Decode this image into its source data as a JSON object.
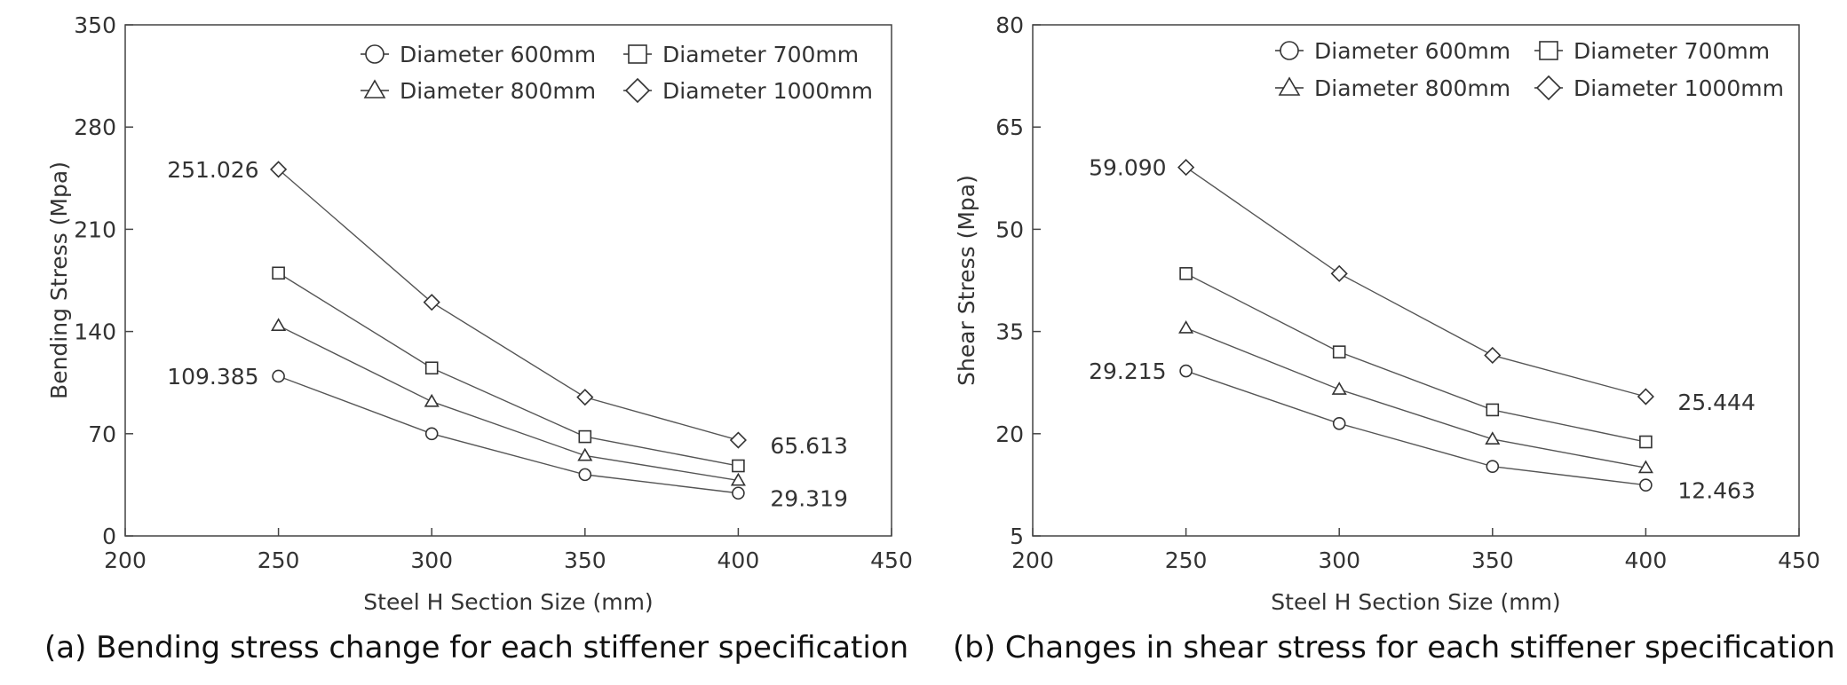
{
  "chart_data": [
    {
      "type": "line",
      "ylabel": "Bending Stress (Mpa)",
      "xlabel": "Steel H Section Size (mm)",
      "xlim": [
        200,
        450
      ],
      "ylim": [
        0,
        350
      ],
      "xticks": [
        200,
        250,
        300,
        350,
        400,
        450
      ],
      "yticks": [
        0,
        70,
        140,
        210,
        280,
        350
      ],
      "x": [
        250,
        300,
        350,
        400
      ],
      "series": [
        {
          "name": "Diameter 600mm",
          "marker": "circle",
          "values": [
            109.385,
            70,
            42,
            29.319
          ]
        },
        {
          "name": "Diameter 700mm",
          "marker": "square",
          "values": [
            180,
            115,
            68,
            48
          ]
        },
        {
          "name": "Diameter 800mm",
          "marker": "triangle",
          "values": [
            144,
            92,
            55,
            38
          ]
        },
        {
          "name": "Diameter 1000mm",
          "marker": "diamond",
          "values": [
            251.026,
            160,
            95,
            65.613
          ]
        }
      ],
      "annotations": [
        {
          "text": "251.026",
          "x": 250,
          "y": 251.026,
          "side": "left"
        },
        {
          "text": "109.385",
          "x": 250,
          "y": 109.385,
          "side": "left"
        },
        {
          "text": "65.613",
          "x": 400,
          "y": 65.613,
          "side": "right"
        },
        {
          "text": "29.319",
          "x": 400,
          "y": 29.319,
          "side": "right"
        }
      ],
      "legend": "top-right",
      "grid": false,
      "caption": "(a) Bending stress change for each stiffener specification"
    },
    {
      "type": "line",
      "ylabel": "Shear Stress (Mpa)",
      "xlabel": "Steel H Section Size (mm)",
      "xlim": [
        200,
        450
      ],
      "ylim": [
        5,
        80
      ],
      "xticks": [
        200,
        250,
        300,
        350,
        400,
        450
      ],
      "yticks": [
        5,
        20,
        35,
        50,
        65,
        80
      ],
      "x": [
        250,
        300,
        350,
        400
      ],
      "series": [
        {
          "name": "Diameter 600mm",
          "marker": "circle",
          "values": [
            29.215,
            21.5,
            15.2,
            12.463
          ]
        },
        {
          "name": "Diameter 700mm",
          "marker": "square",
          "values": [
            43.5,
            32,
            23.5,
            18.8
          ]
        },
        {
          "name": "Diameter 800mm",
          "marker": "triangle",
          "values": [
            35.5,
            26.5,
            19.2,
            15
          ]
        },
        {
          "name": "Diameter 1000mm",
          "marker": "diamond",
          "values": [
            59.09,
            43.5,
            31.5,
            25.444
          ]
        }
      ],
      "annotations": [
        {
          "text": "59.090",
          "x": 250,
          "y": 59.09,
          "side": "left"
        },
        {
          "text": "29.215",
          "x": 250,
          "y": 29.215,
          "side": "left"
        },
        {
          "text": "25.444",
          "x": 400,
          "y": 25.444,
          "side": "right"
        },
        {
          "text": "12.463",
          "x": 400,
          "y": 12.463,
          "side": "right"
        }
      ],
      "legend": "top-right",
      "grid": false,
      "caption": "(b) Changes in shear stress for each stiffener specification"
    }
  ]
}
